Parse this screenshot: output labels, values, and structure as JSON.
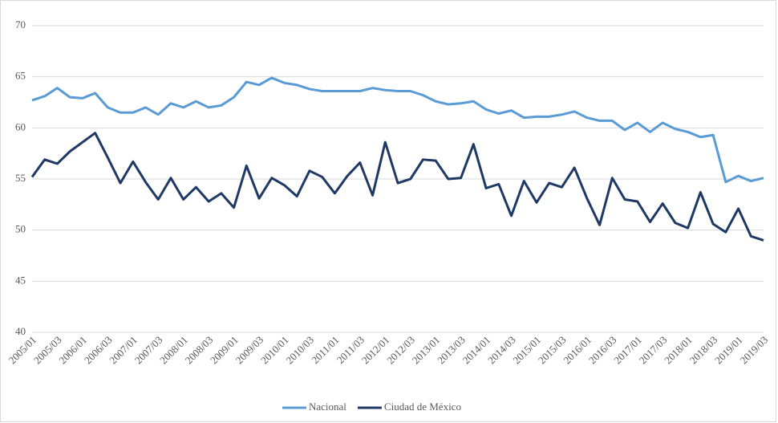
{
  "chart_data": {
    "type": "line",
    "categories": [
      "2005/01",
      null,
      "2005/03",
      null,
      "2006/01",
      null,
      "2006/03",
      null,
      "2007/01",
      null,
      "2007/03",
      null,
      "2008/01",
      null,
      "2008/03",
      null,
      "2009/01",
      null,
      "2009/03",
      null,
      "2010/01",
      null,
      "2010/03",
      null,
      "2011/01",
      null,
      "2011/03",
      null,
      "2012/01",
      null,
      "2012/03",
      null,
      "2013/01",
      null,
      "2013/03",
      null,
      "2014/01",
      null,
      "2014/03",
      null,
      "2015/01",
      null,
      "2015/03",
      null,
      "2016/01",
      null,
      "2016/03",
      null,
      "2017/01",
      null,
      "2017/03",
      null,
      "2018/01",
      null,
      "2018/03",
      null,
      "2019/01",
      null,
      "2019/03"
    ],
    "series": [
      {
        "name": "Nacional",
        "color": "#5b9bd5",
        "values": [
          62.7,
          63.1,
          63.9,
          63.0,
          62.9,
          63.4,
          62.0,
          61.5,
          61.5,
          62.0,
          61.3,
          62.4,
          62.0,
          62.6,
          62.0,
          62.2,
          63.0,
          64.5,
          64.2,
          64.9,
          64.4,
          64.2,
          63.8,
          63.6,
          63.6,
          63.6,
          63.6,
          63.9,
          63.7,
          63.6,
          63.6,
          63.2,
          62.6,
          62.3,
          62.4,
          62.6,
          61.8,
          61.4,
          61.7,
          61.0,
          61.1,
          61.1,
          61.3,
          61.6,
          61.0,
          60.7,
          60.7,
          59.8,
          60.5,
          59.6,
          60.5,
          59.9,
          59.6,
          59.1,
          59.3,
          54.7,
          55.3,
          54.8,
          55.1
        ]
      },
      {
        "name": "Ciudad de México",
        "color": "#1f3864",
        "values": [
          55.2,
          56.9,
          56.5,
          57.7,
          58.6,
          59.5,
          57.1,
          54.6,
          56.7,
          54.7,
          53.0,
          55.1,
          53.0,
          54.2,
          52.8,
          53.6,
          52.2,
          56.3,
          53.1,
          55.1,
          54.4,
          53.3,
          55.8,
          55.2,
          53.6,
          55.3,
          56.6,
          53.4,
          58.6,
          54.6,
          55.0,
          56.9,
          56.8,
          55.0,
          55.1,
          58.4,
          54.1,
          54.5,
          51.4,
          54.8,
          52.7,
          54.6,
          54.2,
          56.1,
          53.1,
          50.5,
          55.1,
          53.0,
          52.8,
          50.8,
          52.6,
          50.7,
          50.2,
          53.7,
          50.6,
          49.8,
          52.1,
          49.4,
          49.0
        ]
      }
    ],
    "ylim": [
      40,
      70
    ],
    "yticks": [
      40,
      45,
      50,
      55,
      60,
      65,
      70
    ],
    "grid": true,
    "legend": "bottom"
  }
}
